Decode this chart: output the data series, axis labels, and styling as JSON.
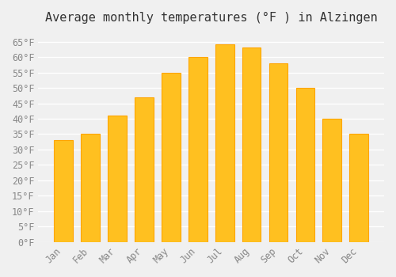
{
  "title": "Average monthly temperatures (°F ) in Alzingen",
  "months": [
    "Jan",
    "Feb",
    "Mar",
    "Apr",
    "May",
    "Jun",
    "Jul",
    "Aug",
    "Sep",
    "Oct",
    "Nov",
    "Dec"
  ],
  "values": [
    33,
    35,
    41,
    47,
    55,
    60,
    64,
    63,
    58,
    50,
    40,
    35
  ],
  "bar_color_face": "#FFC020",
  "bar_color_edge": "#FFA500",
  "ylim": [
    0,
    68
  ],
  "yticks": [
    0,
    5,
    10,
    15,
    20,
    25,
    30,
    35,
    40,
    45,
    50,
    55,
    60,
    65
  ],
  "ytick_labels": [
    "0°F",
    "5°F",
    "10°F",
    "15°F",
    "20°F",
    "25°F",
    "30°F",
    "35°F",
    "40°F",
    "45°F",
    "50°F",
    "55°F",
    "60°F",
    "65°F"
  ],
  "background_color": "#f0f0f0",
  "grid_color": "#ffffff",
  "title_fontsize": 11,
  "tick_fontsize": 8.5,
  "title_font": "monospace"
}
